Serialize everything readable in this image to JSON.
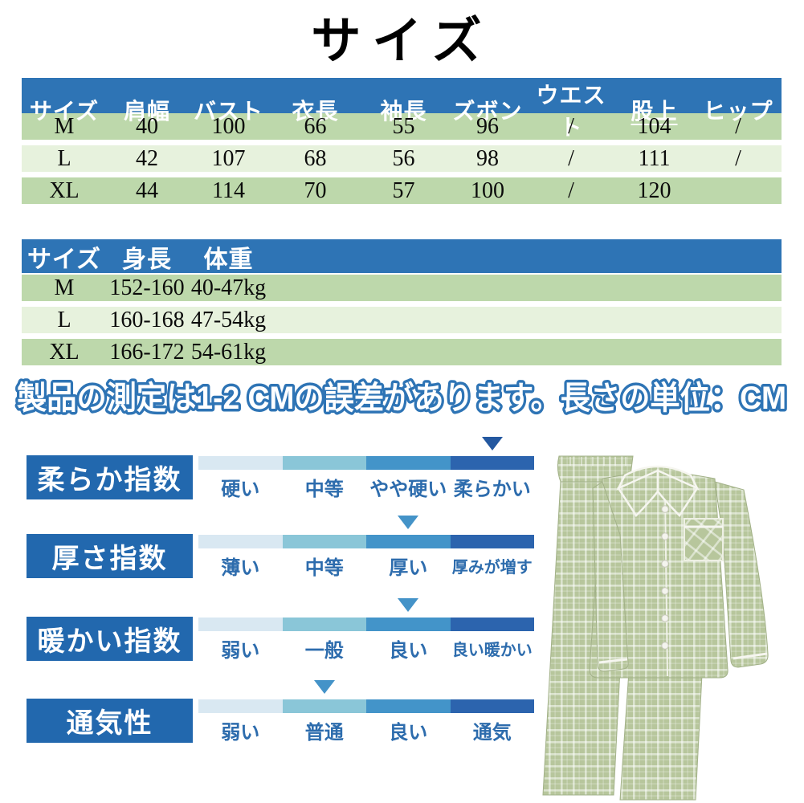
{
  "title": "サイズ",
  "size_table": {
    "headers": [
      "サイズ",
      "肩幅",
      "バスト",
      "衣長",
      "袖長",
      "ズボン",
      "ウエスト",
      "股上",
      "ヒップ"
    ],
    "underline_header_index": 7,
    "rows": [
      [
        "M",
        "40",
        "100",
        "66",
        "55",
        "96",
        "/",
        "104",
        "/"
      ],
      [
        "L",
        "42",
        "107",
        "68",
        "56",
        "98",
        "/",
        "111",
        "/"
      ],
      [
        "XL",
        "44",
        "114",
        "70",
        "57",
        "100",
        "/",
        "120",
        ""
      ]
    ]
  },
  "body_table": {
    "headers": [
      "サイズ",
      "身長",
      "体重",
      ""
    ],
    "rows": [
      [
        "M",
        "152-160",
        "40-47kg",
        ""
      ],
      [
        "L",
        "160-168",
        "47-54kg",
        ""
      ],
      [
        "XL",
        "166-172",
        "54-61kg",
        ""
      ]
    ]
  },
  "note": "製品の測定は1-2 CMの誤差があります。長さの単位：CM",
  "indices": [
    {
      "label": "柔らか指数",
      "levels": [
        "硬い",
        "中等",
        "やや硬い",
        "柔らかい"
      ],
      "selected": 3
    },
    {
      "label": "厚さ指数",
      "levels": [
        "薄い",
        "中等",
        "厚い",
        "厚みが増す"
      ],
      "selected": 2
    },
    {
      "label": "暖かい指数",
      "levels": [
        "弱い",
        "一般",
        "良い",
        "良い暖かい"
      ],
      "selected": 2
    },
    {
      "label": "通気性",
      "levels": [
        "弱い",
        "普通",
        "良い",
        "通気"
      ],
      "selected": 1
    }
  ],
  "colors": {
    "header_blue": "#2e74b5",
    "row_green": "#bdd8ab",
    "row_light": "#e7f2dd",
    "note_outline_blue": "#2e74b5",
    "index_box_blue": "#2268ae",
    "scale_segments": [
      "#d9e8f2",
      "#8ac6d8",
      "#4394c9",
      "#2c64ae"
    ],
    "arrow_dark": "#2458a0",
    "arrow_medium": "#4493c8",
    "scale_label_blue": "#2d6cad",
    "pajama_green": "#b7c69c"
  },
  "product_image": {
    "name": "plaid-pajama-set",
    "description": "緑のチェック柄パジャマ上下セット"
  }
}
